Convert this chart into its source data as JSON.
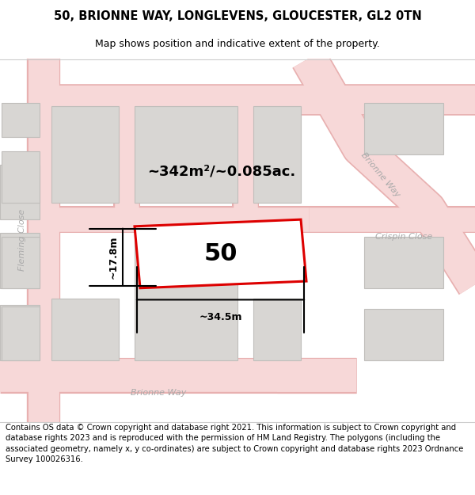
{
  "title_line1": "50, BRIONNE WAY, LONGLEVENS, GLOUCESTER, GL2 0TN",
  "title_line2": "Map shows position and indicative extent of the property.",
  "footer_text": "Contains OS data © Crown copyright and database right 2021. This information is subject to Crown copyright and database rights 2023 and is reproduced with the permission of HM Land Registry. The polygons (including the associated geometry, namely x, y co-ordinates) are subject to Crown copyright and database rights 2023 Ordnance Survey 100026316.",
  "map_bg": "#f2eeea",
  "road_fill": "#f7d8d8",
  "road_edge": "#e8b0b0",
  "building_fill": "#d8d6d3",
  "building_edge": "#c0bebb",
  "plot_fill": "#ffffff",
  "plot_edge": "#dd0000",
  "plot_label": "50",
  "area_label": "~342m²/~0.085ac.",
  "width_label": "~34.5m",
  "height_label": "~17.8m",
  "title_fontsize": 10.5,
  "subtitle_fontsize": 9,
  "footer_fontsize": 7.2,
  "road_label_color": "#aaaaaa",
  "road_label_size": 8
}
